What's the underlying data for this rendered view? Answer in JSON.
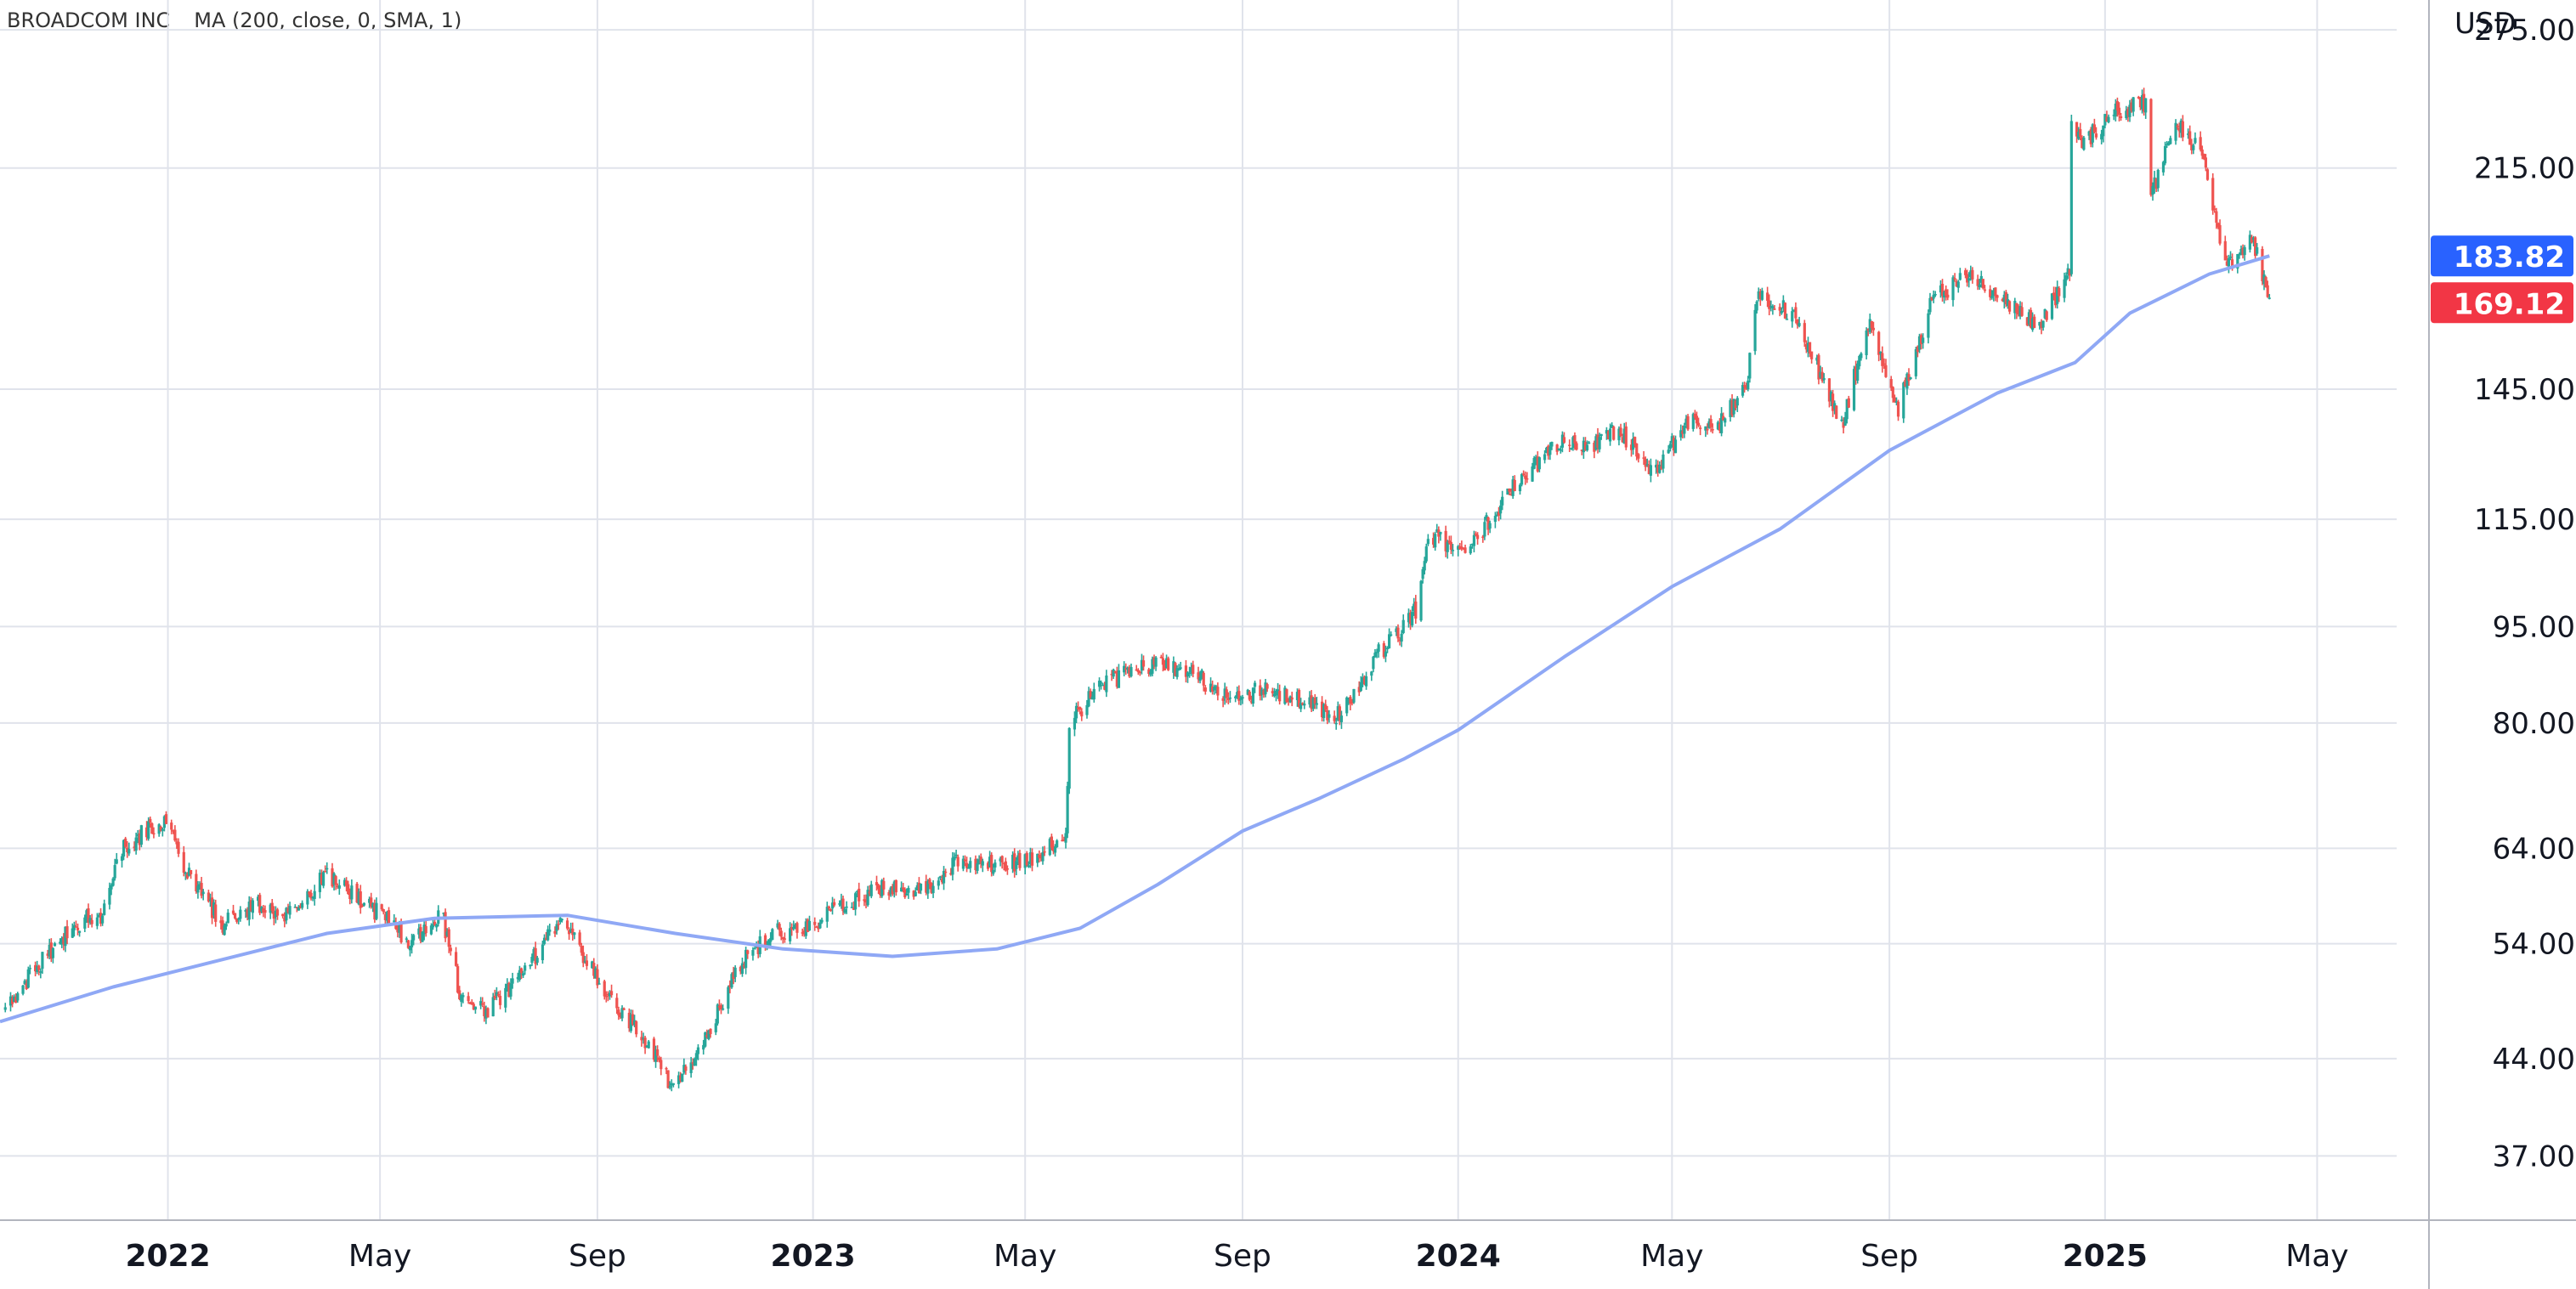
{
  "legend": {
    "symbol": "BROADCOM INC",
    "indicator": "MA (200, close, 0, SMA, 1)"
  },
  "currency": "USD",
  "colors": {
    "up": "#26a69a",
    "down": "#ef5350",
    "ma": "#8fa8f5",
    "last_ma_badge": "#2962ff",
    "last_price_badge": "#f23645",
    "grid": "#e0e3eb",
    "axis_text": "#131722"
  },
  "chart_data": {
    "type": "candlestick",
    "title": "",
    "y_scale": "log",
    "ylim": [
      33,
      290
    ],
    "y_ticks": [
      275.0,
      215.0,
      145.0,
      115.0,
      95.0,
      80.0,
      64.0,
      54.0,
      44.0,
      37.0
    ],
    "y_tick_labels": [
      "275.00",
      "215.00",
      "145.00",
      "115.00",
      "95.00",
      "80.00",
      "64.00",
      "54.00",
      "44.00",
      "37.00"
    ],
    "x_range": [
      "2021-09-28",
      "2025-06-15"
    ],
    "x_ticks": [
      {
        "date": "2022-01-01",
        "label": "2022",
        "bold": true
      },
      {
        "date": "2022-05-01",
        "label": "May",
        "bold": false
      },
      {
        "date": "2022-09-01",
        "label": "Sep",
        "bold": false
      },
      {
        "date": "2023-01-01",
        "label": "2023",
        "bold": true
      },
      {
        "date": "2023-05-01",
        "label": "May",
        "bold": false
      },
      {
        "date": "2023-09-01",
        "label": "Sep",
        "bold": false
      },
      {
        "date": "2024-01-01",
        "label": "2024",
        "bold": true
      },
      {
        "date": "2024-05-01",
        "label": "May",
        "bold": false
      },
      {
        "date": "2024-09-01",
        "label": "Sep",
        "bold": false
      },
      {
        "date": "2025-01-01",
        "label": "2025",
        "bold": true
      },
      {
        "date": "2025-05-01",
        "label": "May",
        "bold": false
      }
    ],
    "price_path": [
      [
        "2021-10-01",
        48
      ],
      [
        "2021-10-20",
        52
      ],
      [
        "2021-11-10",
        56
      ],
      [
        "2021-11-25",
        57
      ],
      [
        "2021-12-05",
        64
      ],
      [
        "2021-12-20",
        66
      ],
      [
        "2021-12-31",
        67
      ],
      [
        "2022-01-15",
        60
      ],
      [
        "2022-02-01",
        56
      ],
      [
        "2022-02-20",
        58
      ],
      [
        "2022-03-10",
        57
      ],
      [
        "2022-03-31",
        61
      ],
      [
        "2022-04-15",
        59
      ],
      [
        "2022-05-01",
        57
      ],
      [
        "2022-05-20",
        54
      ],
      [
        "2022-06-05",
        57
      ],
      [
        "2022-06-16",
        49
      ],
      [
        "2022-07-01",
        48
      ],
      [
        "2022-07-20",
        51
      ],
      [
        "2022-08-10",
        56
      ],
      [
        "2022-08-20",
        54
      ],
      [
        "2022-09-05",
        50
      ],
      [
        "2022-09-25",
        46
      ],
      [
        "2022-10-13",
        42
      ],
      [
        "2022-10-31",
        45
      ],
      [
        "2022-11-20",
        52
      ],
      [
        "2022-12-10",
        55
      ],
      [
        "2022-12-31",
        56
      ],
      [
        "2023-01-20",
        58
      ],
      [
        "2023-02-15",
        60
      ],
      [
        "2023-03-05",
        59
      ],
      [
        "2023-03-25",
        63
      ],
      [
        "2023-04-15",
        62
      ],
      [
        "2023-05-10",
        63
      ],
      [
        "2023-05-24",
        66
      ],
      [
        "2023-05-26",
        80
      ],
      [
        "2023-06-15",
        86
      ],
      [
        "2023-07-15",
        89
      ],
      [
        "2023-08-05",
        87
      ],
      [
        "2023-08-25",
        84
      ],
      [
        "2023-09-15",
        85
      ],
      [
        "2023-10-05",
        83
      ],
      [
        "2023-10-26",
        81
      ],
      [
        "2023-11-15",
        90
      ],
      [
        "2023-12-01",
        95
      ],
      [
        "2023-12-08",
        98
      ],
      [
        "2023-12-15",
        112
      ],
      [
        "2024-01-05",
        108
      ],
      [
        "2024-02-01",
        122
      ],
      [
        "2024-03-01",
        133
      ],
      [
        "2024-03-10",
        130
      ],
      [
        "2024-04-01",
        135
      ],
      [
        "2024-04-20",
        125
      ],
      [
        "2024-05-10",
        137
      ],
      [
        "2024-05-25",
        135
      ],
      [
        "2024-06-12",
        145
      ],
      [
        "2024-06-18",
        172
      ],
      [
        "2024-07-10",
        165
      ],
      [
        "2024-08-05",
        136
      ],
      [
        "2024-08-20",
        163
      ],
      [
        "2024-09-06",
        140
      ],
      [
        "2024-09-25",
        170
      ],
      [
        "2024-10-15",
        178
      ],
      [
        "2024-11-05",
        170
      ],
      [
        "2024-11-25",
        162
      ],
      [
        "2024-12-12",
        180
      ],
      [
        "2024-12-13",
        230
      ],
      [
        "2024-12-20",
        225
      ],
      [
        "2025-01-05",
        237
      ],
      [
        "2025-01-24",
        242
      ],
      [
        "2025-01-27",
        205
      ],
      [
        "2025-02-10",
        233
      ],
      [
        "2025-02-25",
        220
      ],
      [
        "2025-03-10",
        180
      ],
      [
        "2025-03-25",
        190
      ],
      [
        "2025-04-04",
        169.12
      ]
    ],
    "moving_average": {
      "name": "MA (200, close, 0, SMA, 1)",
      "values": [
        [
          "2021-09-28",
          47
        ],
        [
          "2021-12-01",
          50
        ],
        [
          "2022-02-01",
          52.5
        ],
        [
          "2022-04-01",
          55
        ],
        [
          "2022-06-01",
          56.5
        ],
        [
          "2022-08-15",
          56.8
        ],
        [
          "2022-10-15",
          55
        ],
        [
          "2022-12-15",
          53.5
        ],
        [
          "2023-02-15",
          52.8
        ],
        [
          "2023-04-15",
          53.5
        ],
        [
          "2023-06-01",
          55.5
        ],
        [
          "2023-07-15",
          60
        ],
        [
          "2023-09-01",
          66
        ],
        [
          "2023-10-15",
          70
        ],
        [
          "2023-12-01",
          75
        ],
        [
          "2024-01-01",
          79
        ],
        [
          "2024-03-01",
          90
        ],
        [
          "2024-05-01",
          102
        ],
        [
          "2024-07-01",
          113
        ],
        [
          "2024-09-01",
          130
        ],
        [
          "2024-11-01",
          144
        ],
        [
          "2024-12-15",
          152
        ],
        [
          "2025-01-15",
          166
        ],
        [
          "2025-03-01",
          178
        ],
        [
          "2025-04-04",
          183.82
        ]
      ]
    },
    "last_values": {
      "ma": 183.82,
      "ma_label": "183.82",
      "price": 169.12,
      "price_label": "169.12"
    },
    "grid": true
  }
}
